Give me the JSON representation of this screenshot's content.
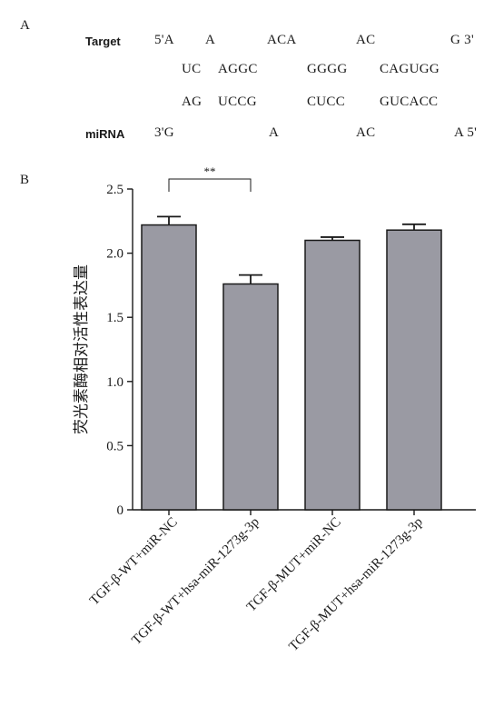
{
  "panel_a": {
    "label": "A",
    "target_label": "Target",
    "mirna_label": "miRNA",
    "target_row": [
      "5'A",
      "A",
      "ACA",
      "AC",
      "G 3'"
    ],
    "pair_top_row": [
      "UC",
      "AGGC",
      "GGGG",
      "CAGUGG"
    ],
    "pair_bottom_row": [
      "AG",
      "UCCG",
      "CUCC",
      "GUCACC"
    ],
    "mirna_row": [
      "3'G",
      "A",
      "AC",
      "A 5'"
    ]
  },
  "panel_b": {
    "label": "B"
  },
  "chart_data": {
    "type": "bar",
    "categories": [
      "TGF-β-WT+miR-NC",
      "TGF-β-WT+hsa-miR-1273g-3p",
      "TGF-β-MUT+miR-NC",
      "TGF-β-MUT+hsa-miR-1273g-3p"
    ],
    "values": [
      2.22,
      1.76,
      2.1,
      2.18
    ],
    "errors": [
      0.065,
      0.07,
      0.025,
      0.045
    ],
    "ylabel": "荧光素酶相对活性表达量",
    "xlabel": "",
    "ylim": [
      0,
      2.5
    ],
    "yticks": [
      "0",
      "0.5",
      "1.0",
      "1.5",
      "2.0",
      "2.5"
    ],
    "significance": {
      "between": [
        0,
        1
      ],
      "label": "**"
    },
    "bar_color": "#9a9aa3",
    "grid": false,
    "legend": "none"
  }
}
